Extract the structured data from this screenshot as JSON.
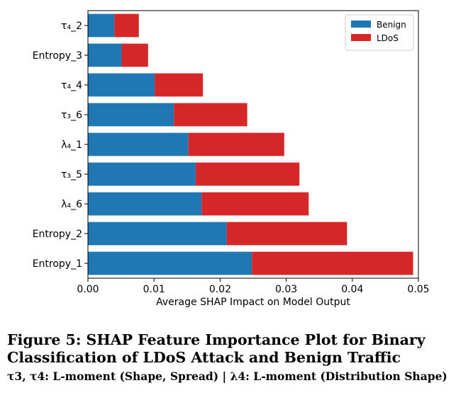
{
  "chart_data": {
    "type": "bar",
    "orientation": "horizontal",
    "stacked": true,
    "categories": [
      "Entropy_1",
      "Entropy_2",
      "λ₄_6",
      "τ₃_5",
      "λ₄_1",
      "τ₃_6",
      "τ₄_4",
      "Entropy_3",
      "τ₄_2"
    ],
    "series": [
      {
        "name": "Benign",
        "color": "#1f77b4",
        "values": [
          0.0248,
          0.021,
          0.0172,
          0.0163,
          0.0152,
          0.013,
          0.0101,
          0.0051,
          0.004
        ]
      },
      {
        "name": "LDoS",
        "color": "#d62728",
        "values": [
          0.0244,
          0.0182,
          0.0162,
          0.0157,
          0.0145,
          0.0111,
          0.0073,
          0.004,
          0.0037
        ]
      }
    ],
    "xlim": [
      0,
      0.05
    ],
    "xticks": [
      "0.00",
      "0.01",
      "0.02",
      "0.03",
      "0.04",
      "0.05"
    ],
    "xlabel": "Average SHAP Impact on Model Output",
    "ylabel": "",
    "grid": false,
    "legend_position": "top-right"
  },
  "caption": {
    "title": "Figure 5: SHAP Feature Importance Plot for Binary Classification of LDoS Attack and Benign Traffic",
    "note": "τ3, τ4: L-moment (Shape, Spread) | λ4: L-moment (Distribution Shape)"
  }
}
